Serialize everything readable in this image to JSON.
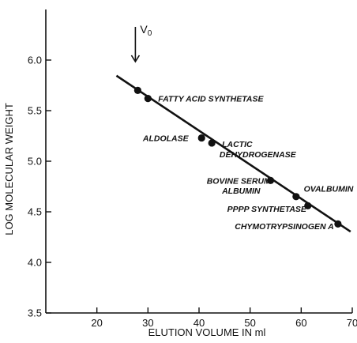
{
  "chart_data": {
    "type": "scatter",
    "xlabel": "ELUTION VOLUME IN ml",
    "ylabel": "LOG MOLECULAR WEIGHT",
    "xlim": [
      10,
      70
    ],
    "ylim": [
      3.5,
      6.5
    ],
    "xticks": [
      20,
      30,
      40,
      50,
      60,
      70
    ],
    "yticks": [
      3.5,
      4.0,
      4.5,
      5.0,
      5.5,
      6.0
    ],
    "xtick_labels": [
      "20",
      "30",
      "40",
      "50",
      "60",
      "70"
    ],
    "ytick_labels": [
      "3.5",
      "4.0",
      "4.5",
      "5.0",
      "5.5",
      "6.0"
    ],
    "grid": false,
    "points": [
      {
        "x": 28.0,
        "y": 5.7,
        "label": ""
      },
      {
        "x": 30.0,
        "y": 5.62,
        "label": "FATTY ACID SYNTHETASE"
      },
      {
        "x": 40.5,
        "y": 5.23,
        "label": "ALDOLASE"
      },
      {
        "x": 42.5,
        "y": 5.18,
        "label": "LACTIC DEHYDROGENASE"
      },
      {
        "x": 54.0,
        "y": 4.81,
        "label": "BOVINE SERUM ALBUMIN"
      },
      {
        "x": 59.0,
        "y": 4.65,
        "label": "OVALBUMIN"
      },
      {
        "x": 61.3,
        "y": 4.56,
        "label": "PPPP SYNTHETASE"
      },
      {
        "x": 67.2,
        "y": 4.38,
        "label": "CHYMOTRYPSINOGEN A"
      }
    ],
    "fit_line": {
      "x": [
        24.0,
        69.5
      ],
      "y": [
        5.84,
        4.31
      ]
    },
    "annotations": [
      {
        "text": "FATTY ACID SYNTHETASE",
        "x": 32.0,
        "y": 5.62
      },
      {
        "text": "ALDOLASE",
        "x": 29.0,
        "y": 5.23
      },
      {
        "text": "LACTIC",
        "x": 44.5,
        "y": 5.17
      },
      {
        "text": "DEHYDROGENASE",
        "x": 44.0,
        "y": 5.07
      },
      {
        "text": "BOVINE SERUM",
        "x": 41.5,
        "y": 4.81
      },
      {
        "text": "ALBUMIN",
        "x": 44.5,
        "y": 4.71
      },
      {
        "text": "OVALBUMIN",
        "x": 60.5,
        "y": 4.73
      },
      {
        "text": "PPPP SYNTHETASE",
        "x": 45.5,
        "y": 4.53
      },
      {
        "text": "CHYMOTRYPSINOGEN A",
        "x": 47.0,
        "y": 4.36
      }
    ],
    "marker": {
      "label": "V",
      "subscript": "0",
      "x": 28.0
    }
  }
}
